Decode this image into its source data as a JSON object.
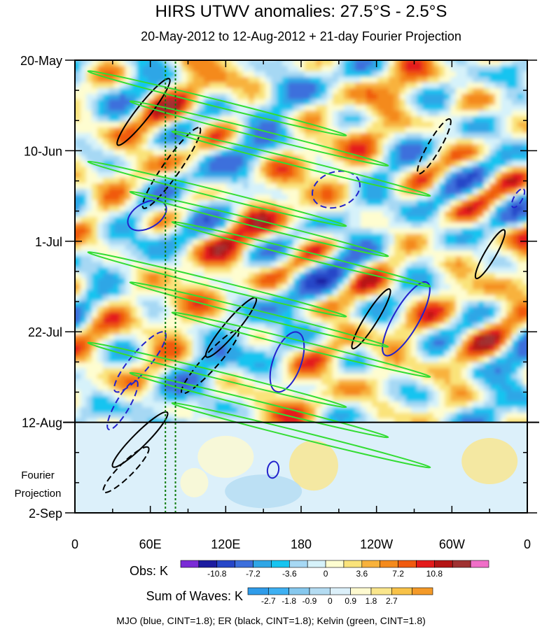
{
  "chart_data": {
    "type": "heatmap",
    "title": "HIRS UTWV anomalies: 27.5°S - 2.5°S",
    "subtitle": "20-May-2012 to 12-Aug-2012 + 21-day Fourier Projection",
    "y_tick_labels": [
      "20-May",
      "10-Jun",
      "1-Jul",
      "22-Jul",
      "12-Aug",
      "2-Sep"
    ],
    "y_tick_day_offsets": [
      0,
      21,
      42,
      63,
      84,
      105
    ],
    "observation_end_day": 84,
    "projection_label_line1": "Fourier",
    "projection_label_line2": "Projection",
    "x_tick_labels": [
      "0",
      "60E",
      "120E",
      "180",
      "120W",
      "60W",
      "0"
    ],
    "x_tick_longitudes": [
      0,
      60,
      120,
      180,
      240,
      300,
      360
    ],
    "reference_lines_lon": [
      72,
      80
    ],
    "obs_colorbar": {
      "label": "Obs: K",
      "tick_labels": [
        "-10.8",
        "-7.2",
        "-3.6",
        "0",
        "3.6",
        "7.2",
        "10.8"
      ],
      "colors": [
        "#7a2bd6",
        "#1c1ca0",
        "#2646c8",
        "#3c6fdc",
        "#2fa6e6",
        "#16c4f0",
        "#a6d8f4",
        "#d6f2fa",
        "#fefdd0",
        "#fae37a",
        "#f8b23c",
        "#f48a1c",
        "#f05a10",
        "#e41a1a",
        "#b41414",
        "#a03232",
        "#f06ec8"
      ]
    },
    "waves_colorbar": {
      "label": "Sum of Waves: K",
      "tick_labels": [
        "-2.7",
        "-1.8",
        "-0.9",
        "0",
        "0.9",
        "1.8",
        "2.7"
      ],
      "colors": [
        "#2f9cea",
        "#3eb0f2",
        "#86c8ee",
        "#b4dcf2",
        "#dcf0fa",
        "#fefad0",
        "#fae68c",
        "#f8c248",
        "#f49a28"
      ]
    },
    "series": [
      {
        "name": "MJO",
        "color": "blue",
        "cint": 1.8
      },
      {
        "name": "ER",
        "color": "black",
        "cint": 1.8
      },
      {
        "name": "Kelvin",
        "color": "green",
        "cint": 1.8
      }
    ],
    "footer": "MJO (blue, CINT=1.8); ER (black, CINT=1.8); Kelvin (green, CINT=1.8)"
  }
}
